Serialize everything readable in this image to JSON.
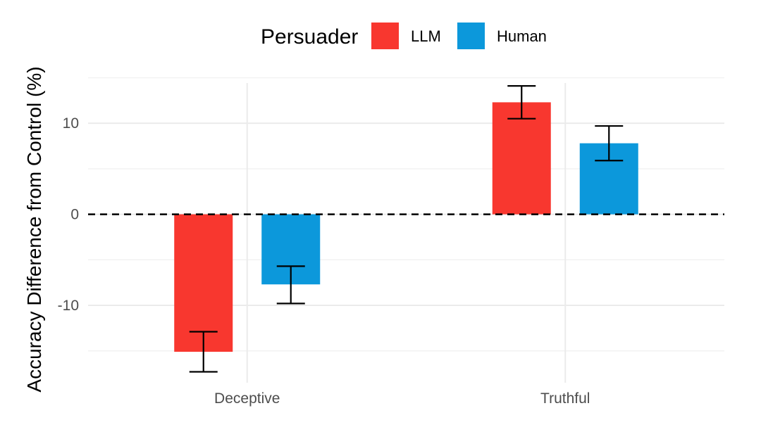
{
  "chart_data": {
    "type": "bar",
    "title": "",
    "xlabel": "",
    "ylabel": "Accuracy Difference from Control (%)",
    "categories": [
      "Deceptive",
      "Truthful"
    ],
    "series": [
      {
        "name": "LLM",
        "color": "#f8372f",
        "values": [
          -15.1,
          12.3
        ],
        "error_low": [
          -17.3,
          10.5
        ],
        "error_high": [
          -12.9,
          14.1
        ]
      },
      {
        "name": "Human",
        "color": "#0c98db",
        "values": [
          -7.7,
          7.8
        ],
        "error_low": [
          -9.8,
          5.9
        ],
        "error_high": [
          -5.7,
          9.7
        ]
      }
    ],
    "ylim": [
      -18.5,
      15.5
    ],
    "y_ticks": [
      -10,
      0,
      10
    ],
    "y_tick_labels": [
      "-10",
      "0",
      "10"
    ],
    "y_minor_ticks": [
      -15,
      -5,
      5,
      15
    ],
    "reference_line": {
      "value": 0,
      "style": "dashed"
    },
    "legend": {
      "title": "Persuader",
      "placement": "top",
      "entries": [
        "LLM",
        "Human"
      ]
    },
    "grid": true
  }
}
